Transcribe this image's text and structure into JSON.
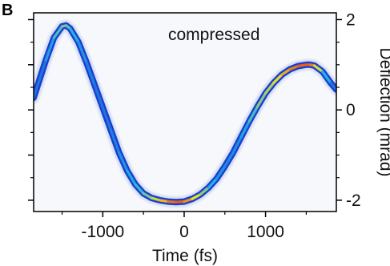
{
  "panel_label": "B",
  "chart_data": {
    "type": "heatmap",
    "annotation": "compressed",
    "xlabel": "Time (fs)",
    "ylabel": "Deflection (mrad)",
    "xlim": [
      -1850,
      1870
    ],
    "ylim": [
      -2.25,
      2.15
    ],
    "x_ticks": [
      {
        "value": -1000,
        "label": "-1000"
      },
      {
        "value": 0,
        "label": "0"
      },
      {
        "value": 1000,
        "label": "1000"
      }
    ],
    "y_ticks": [
      {
        "value": 2,
        "label": "2"
      },
      {
        "value": 0,
        "label": "0"
      },
      {
        "value": -2,
        "label": "-2"
      }
    ],
    "y_axis_position": "right",
    "grid": false,
    "colormap": [
      "#c9d6f0",
      "#1f49d8",
      "#22b4e6",
      "#f0e020",
      "#e01818"
    ],
    "trace": {
      "x": [
        -1850,
        -1700,
        -1600,
        -1500,
        -1450,
        -1400,
        -1300,
        -1200,
        -1100,
        -1000,
        -900,
        -800,
        -700,
        -600,
        -500,
        -400,
        -300,
        -200,
        -100,
        0,
        100,
        200,
        300,
        400,
        500,
        600,
        700,
        800,
        900,
        1000,
        1100,
        1200,
        1300,
        1400,
        1500,
        1550,
        1600,
        1700,
        1800,
        1870
      ],
      "y": [
        0.27,
        1.1,
        1.6,
        1.85,
        1.87,
        1.8,
        1.5,
        1.05,
        0.55,
        0.05,
        -0.45,
        -0.95,
        -1.35,
        -1.65,
        -1.85,
        -1.95,
        -2.0,
        -2.03,
        -2.04,
        -2.03,
        -1.97,
        -1.87,
        -1.72,
        -1.52,
        -1.25,
        -0.95,
        -0.6,
        -0.25,
        0.07,
        0.37,
        0.6,
        0.78,
        0.9,
        0.97,
        1.0,
        1.0,
        0.98,
        0.85,
        0.6,
        0.45
      ],
      "intensity": [
        0.3,
        0.4,
        0.5,
        0.6,
        0.62,
        0.55,
        0.45,
        0.4,
        0.35,
        0.35,
        0.35,
        0.4,
        0.45,
        0.5,
        0.55,
        0.65,
        0.75,
        0.85,
        0.92,
        0.9,
        0.8,
        0.7,
        0.55,
        0.45,
        0.4,
        0.4,
        0.42,
        0.5,
        0.6,
        0.65,
        0.7,
        0.78,
        0.85,
        0.9,
        0.92,
        0.9,
        0.85,
        0.6,
        0.4,
        0.3
      ]
    }
  }
}
